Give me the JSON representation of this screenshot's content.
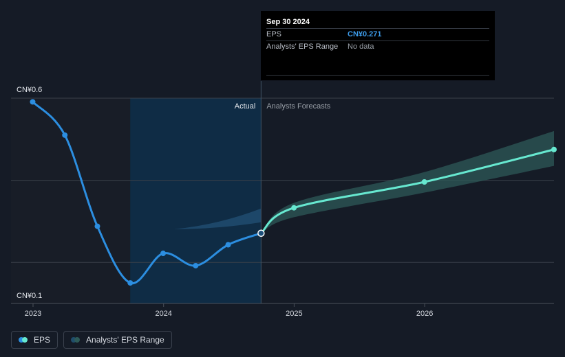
{
  "tooltip": {
    "date": "Sep 30 2024",
    "eps_label": "EPS",
    "eps_value": "CN¥0.271",
    "range_label": "Analysts' EPS Range",
    "range_value": "No data"
  },
  "regions": {
    "actual": "Actual",
    "forecast": "Analysts Forecasts"
  },
  "legend": {
    "eps": "EPS",
    "range": "Analysts' EPS Range"
  },
  "colors": {
    "background": "#151b26",
    "actual_line": "#2c8ee0",
    "forecast_line": "#67e8d0",
    "forecast_band": "#2d5a58",
    "highlight_region": "#0f2c45"
  },
  "chart_data": {
    "type": "line",
    "title": "",
    "xlabel": "",
    "ylabel": "",
    "x_ticks": [
      "2023",
      "2024",
      "2025",
      "2026"
    ],
    "y_ticks": [
      "CN¥0.1",
      "CN¥0.6"
    ],
    "ylim": [
      0.1,
      0.6
    ],
    "xlim": [
      "2023-01-01",
      "2027-01-01"
    ],
    "grid": true,
    "series": [
      {
        "name": "EPS",
        "kind": "actual",
        "points": [
          [
            "2022-12-31",
            0.591
          ],
          [
            "2023-03-31",
            0.51
          ],
          [
            "2023-06-30",
            0.288
          ],
          [
            "2023-09-30",
            0.15
          ],
          [
            "2023-12-31",
            0.222
          ],
          [
            "2024-03-31",
            0.192
          ],
          [
            "2024-06-30",
            0.243
          ],
          [
            "2024-09-30",
            0.271
          ]
        ]
      },
      {
        "name": "EPS",
        "kind": "forecast",
        "points": [
          [
            "2024-09-30",
            0.271
          ],
          [
            "2024-12-31",
            0.333
          ],
          [
            "2025-12-31",
            0.396
          ],
          [
            "2026-12-31",
            0.475
          ]
        ]
      },
      {
        "name": "Analysts' EPS Range",
        "kind": "range",
        "low": [
          [
            "2024-12-31",
            0.31
          ],
          [
            "2025-12-31",
            0.37
          ],
          [
            "2026-12-31",
            0.435
          ]
        ],
        "high": [
          [
            "2024-12-31",
            0.345
          ],
          [
            "2025-12-31",
            0.42
          ],
          [
            "2026-12-31",
            0.52
          ]
        ]
      }
    ]
  }
}
